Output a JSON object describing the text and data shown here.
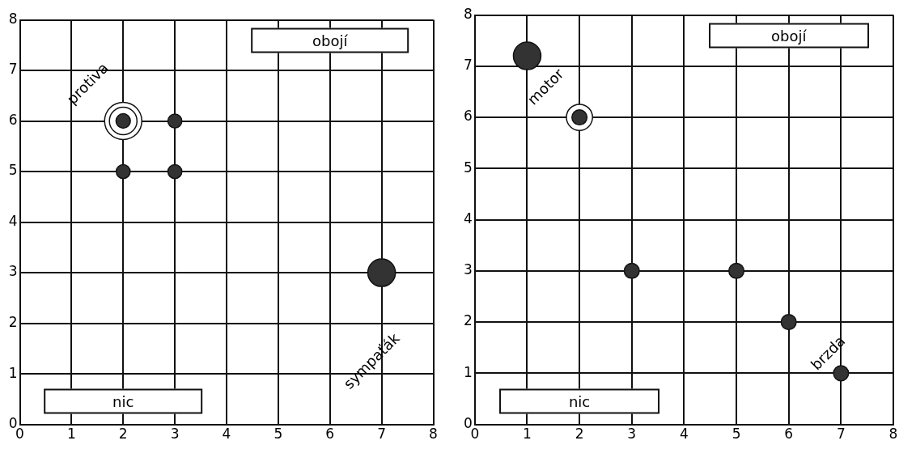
{
  "chart_data": [
    {
      "type": "bubble",
      "xlim": [
        0,
        8
      ],
      "ylim": [
        0,
        8
      ],
      "xticks": [
        0,
        1,
        2,
        3,
        4,
        5,
        6,
        7,
        8
      ],
      "yticks": [
        0,
        1,
        2,
        3,
        4,
        5,
        6,
        7,
        8
      ],
      "grid": true,
      "series": [
        {
          "color": "#ffffff",
          "x": [
            2
          ],
          "values": [
            6
          ],
          "sizes": [
            1
          ]
        },
        {
          "color": "#ffffff",
          "x": [
            2
          ],
          "values": [
            6
          ],
          "sizes": [
            0.55
          ]
        },
        {
          "color": "#333333",
          "x": [
            2,
            3,
            2,
            3,
            7
          ],
          "values": [
            6,
            6,
            5,
            5,
            3
          ],
          "sizes": [
            0.15,
            0.14,
            0.14,
            0.14,
            0.55
          ]
        }
      ],
      "annotations": [
        "obojí",
        "nic",
        "protiva",
        "sympaťák"
      ]
    },
    {
      "type": "bubble",
      "xlim": [
        0,
        8
      ],
      "ylim": [
        0,
        8
      ],
      "xticks": [
        0,
        1,
        2,
        3,
        4,
        5,
        6,
        7,
        8
      ],
      "yticks": [
        0,
        1,
        2,
        3,
        4,
        5,
        6,
        7,
        8
      ],
      "grid": true,
      "series": [
        {
          "color": "#ffffff",
          "x": [
            2
          ],
          "values": [
            6
          ],
          "sizes": [
            0.9
          ]
        },
        {
          "color": "#333333",
          "x": [
            1,
            2,
            3,
            5,
            6,
            7
          ],
          "values": [
            7.2,
            6,
            3,
            3,
            2,
            1
          ],
          "sizes": [
            1,
            0.3,
            0.3,
            0.3,
            0.3,
            0.3
          ]
        }
      ],
      "annotations": [
        "obojí",
        "nic",
        "motor",
        "brzda"
      ]
    }
  ]
}
